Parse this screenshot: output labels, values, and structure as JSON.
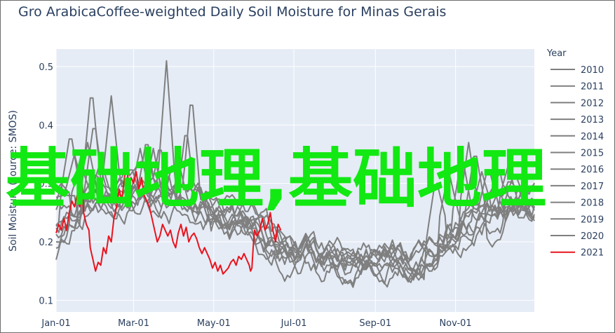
{
  "chart_data": {
    "type": "line",
    "title": "Gro ArabicaCoffee-weighted Daily Soil Moisture for Minas Gerais",
    "ylabel": "Soil Moisture (source: SMOS)",
    "xlabel": "",
    "ylim": [
      0.08,
      0.53
    ],
    "y_ticks": [
      0.1,
      0.2,
      0.3,
      0.4,
      0.5
    ],
    "x_domain": [
      1,
      365
    ],
    "x_ticks": [
      {
        "label": "Jan-01",
        "day": 1
      },
      {
        "label": "Mar-01",
        "day": 60
      },
      {
        "label": "May-01",
        "day": 121
      },
      {
        "label": "Jul-01",
        "day": 182
      },
      {
        "label": "Sep-01",
        "day": 244
      },
      {
        "label": "Nov-01",
        "day": 305
      }
    ],
    "legend_title": "Year",
    "legend_position": "right",
    "colors": {
      "historical": "#7f7f7f",
      "current": "#e8141e",
      "plot_bg": "#e5ecf6",
      "grid": "#ffffff"
    },
    "series": [
      {
        "name": "2010",
        "start": 0.17,
        "peaks": [
          {
            "day": 28,
            "value": 0.47
          },
          {
            "day": 95,
            "value": 0.33
          },
          {
            "day": 340,
            "value": 0.3
          }
        ]
      },
      {
        "name": "2011",
        "start": 0.21,
        "peaks": [
          {
            "day": 12,
            "value": 0.39
          },
          {
            "day": 85,
            "value": 0.51
          },
          {
            "day": 300,
            "value": 0.32
          }
        ]
      },
      {
        "name": "2012",
        "start": 0.24,
        "peaks": [
          {
            "day": 43,
            "value": 0.45
          },
          {
            "day": 104,
            "value": 0.46
          },
          {
            "day": 330,
            "value": 0.33
          }
        ]
      },
      {
        "name": "2013",
        "start": 0.19,
        "peaks": [
          {
            "day": 20,
            "value": 0.33
          },
          {
            "day": 65,
            "value": 0.36
          },
          {
            "day": 320,
            "value": 0.36
          }
        ]
      },
      {
        "name": "2014",
        "start": 0.15,
        "peaks": [
          {
            "day": 8,
            "value": 0.28
          },
          {
            "day": 110,
            "value": 0.3
          },
          {
            "day": 350,
            "value": 0.32
          }
        ]
      },
      {
        "name": "2015",
        "start": 0.17,
        "peaks": [
          {
            "day": 35,
            "value": 0.34
          },
          {
            "day": 70,
            "value": 0.38
          },
          {
            "day": 290,
            "value": 0.31
          }
        ]
      },
      {
        "name": "2016",
        "start": 0.28,
        "peaks": [
          {
            "day": 15,
            "value": 0.35
          },
          {
            "day": 100,
            "value": 0.4
          },
          {
            "day": 335,
            "value": 0.3
          }
        ]
      },
      {
        "name": "2017",
        "start": 0.2,
        "peaks": [
          {
            "day": 50,
            "value": 0.31
          },
          {
            "day": 90,
            "value": 0.34
          },
          {
            "day": 310,
            "value": 0.35
          }
        ]
      },
      {
        "name": "2018",
        "start": 0.23,
        "peaks": [
          {
            "day": 25,
            "value": 0.37
          },
          {
            "day": 75,
            "value": 0.36
          },
          {
            "day": 345,
            "value": 0.33
          }
        ]
      },
      {
        "name": "2019",
        "start": 0.18,
        "peaks": [
          {
            "day": 5,
            "value": 0.3
          },
          {
            "day": 58,
            "value": 0.33
          },
          {
            "day": 315,
            "value": 0.37
          }
        ]
      },
      {
        "name": "2020",
        "start": 0.22,
        "peaks": [
          {
            "day": 30,
            "value": 0.41
          },
          {
            "day": 80,
            "value": 0.37
          },
          {
            "day": 325,
            "value": 0.32
          }
        ]
      },
      {
        "name": "2021",
        "current": true,
        "points": [
          [
            1,
            0.215
          ],
          [
            3,
            0.23
          ],
          [
            5,
            0.22
          ],
          [
            7,
            0.24
          ],
          [
            9,
            0.22
          ],
          [
            11,
            0.25
          ],
          [
            13,
            0.27
          ],
          [
            15,
            0.26
          ],
          [
            17,
            0.28
          ],
          [
            19,
            0.26
          ],
          [
            21,
            0.29
          ],
          [
            22,
            0.25
          ],
          [
            24,
            0.23
          ],
          [
            26,
            0.22
          ],
          [
            27,
            0.19
          ],
          [
            29,
            0.17
          ],
          [
            31,
            0.15
          ],
          [
            33,
            0.165
          ],
          [
            35,
            0.16
          ],
          [
            37,
            0.19
          ],
          [
            39,
            0.18
          ],
          [
            41,
            0.21
          ],
          [
            43,
            0.2
          ],
          [
            45,
            0.24
          ],
          [
            47,
            0.26
          ],
          [
            49,
            0.29
          ],
          [
            51,
            0.27
          ],
          [
            53,
            0.31
          ],
          [
            55,
            0.33
          ],
          [
            56,
            0.3
          ],
          [
            58,
            0.31
          ],
          [
            60,
            0.3
          ],
          [
            62,
            0.32
          ],
          [
            64,
            0.29
          ],
          [
            66,
            0.31
          ],
          [
            68,
            0.28
          ],
          [
            70,
            0.27
          ],
          [
            72,
            0.26
          ],
          [
            74,
            0.24
          ],
          [
            76,
            0.22
          ],
          [
            78,
            0.2
          ],
          [
            80,
            0.21
          ],
          [
            82,
            0.23
          ],
          [
            84,
            0.22
          ],
          [
            86,
            0.21
          ],
          [
            88,
            0.22
          ],
          [
            90,
            0.2
          ],
          [
            92,
            0.19
          ],
          [
            94,
            0.215
          ],
          [
            96,
            0.23
          ],
          [
            98,
            0.21
          ],
          [
            100,
            0.225
          ],
          [
            102,
            0.2
          ],
          [
            104,
            0.21
          ],
          [
            106,
            0.215
          ],
          [
            108,
            0.205
          ],
          [
            110,
            0.19
          ],
          [
            112,
            0.18
          ],
          [
            114,
            0.19
          ],
          [
            116,
            0.18
          ],
          [
            118,
            0.17
          ],
          [
            120,
            0.155
          ],
          [
            122,
            0.165
          ],
          [
            124,
            0.15
          ],
          [
            126,
            0.16
          ],
          [
            128,
            0.145
          ],
          [
            130,
            0.15
          ],
          [
            132,
            0.155
          ],
          [
            134,
            0.165
          ],
          [
            136,
            0.17
          ],
          [
            138,
            0.16
          ],
          [
            140,
            0.175
          ],
          [
            142,
            0.17
          ],
          [
            144,
            0.18
          ],
          [
            146,
            0.17
          ],
          [
            148,
            0.16
          ],
          [
            149,
            0.15
          ],
          [
            150,
            0.155
          ],
          [
            151,
            0.19
          ],
          [
            152,
            0.22
          ],
          [
            154,
            0.21
          ],
          [
            156,
            0.22
          ],
          [
            158,
            0.24
          ],
          [
            160,
            0.22
          ],
          [
            162,
            0.23
          ],
          [
            164,
            0.25
          ],
          [
            166,
            0.22
          ],
          [
            168,
            0.2
          ],
          [
            170,
            0.23
          ],
          [
            172,
            0.22
          ]
        ]
      }
    ]
  },
  "watermark": "基础地理,基础地理"
}
